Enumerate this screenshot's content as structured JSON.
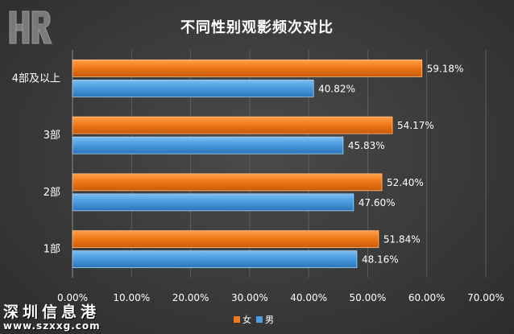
{
  "chart_data": {
    "type": "bar",
    "orientation": "horizontal",
    "title": "不同性别观影频次对比",
    "categories": [
      "4部及以上",
      "3部",
      "2部",
      "1部"
    ],
    "series": [
      {
        "name": "女",
        "color": "#f07a1a",
        "values": [
          59.18,
          54.17,
          52.4,
          51.84
        ],
        "labels": [
          "59.18%",
          "54.17%",
          "52.40%",
          "51.84%"
        ]
      },
      {
        "name": "男",
        "color": "#4a9de0",
        "values": [
          40.82,
          45.83,
          47.6,
          48.16
        ],
        "labels": [
          "40.82%",
          "45.83%",
          "47.60%",
          "48.16%"
        ]
      }
    ],
    "xlim": [
      0,
      70
    ],
    "xticks": [
      "0.00%",
      "10.00%",
      "20.00%",
      "30.00%",
      "40.00%",
      "50.00%",
      "60.00%",
      "70.00%"
    ],
    "grid": true,
    "legend_position": "bottom"
  },
  "watermark": {
    "name": "深圳信息港",
    "url": "www.szxxg.com"
  },
  "colors": {
    "background": "#3a3a3a",
    "text": "#ffffff",
    "grid": "#5a5a5a"
  }
}
